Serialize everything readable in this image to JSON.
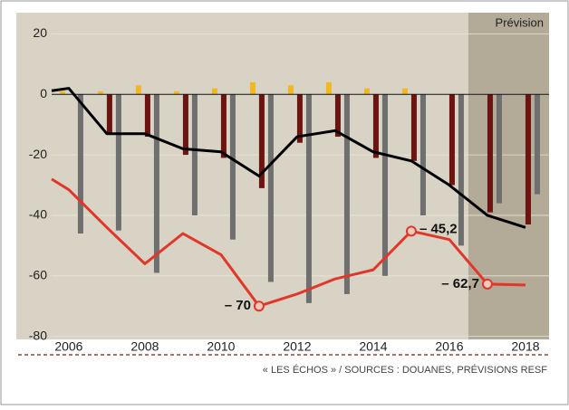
{
  "chart_data": {
    "type": "combo",
    "annotation": "Prévision",
    "forecast_from": 2016.5,
    "source": "« LES ÉCHOS » / SOURCES : DOUANES, PRÉVISIONS RESF",
    "x": [
      2006,
      2007,
      2008,
      2009,
      2010,
      2011,
      2012,
      2013,
      2014,
      2015,
      2016,
      2017,
      2018
    ],
    "xlim": [
      2005.55,
      2018.62
    ],
    "xticks": [
      2006,
      2008,
      2010,
      2012,
      2014,
      2016,
      2018
    ],
    "ylim": [
      -81,
      27
    ],
    "yticks": [
      20,
      0,
      -20,
      -40,
      -60,
      -80
    ],
    "grid": true,
    "series": [
      {
        "type": "bar",
        "offset": -7,
        "color": "#f2b824",
        "values": [
          1,
          1,
          3,
          1,
          2,
          4,
          3,
          4,
          2,
          2,
          0,
          0,
          0
        ]
      },
      {
        "type": "bar",
        "offset": 3,
        "color": "#6b1410",
        "values": [
          0,
          -13,
          -14,
          -20,
          -21,
          -31,
          -16,
          -14,
          -21,
          -22,
          -30,
          -39,
          -43
        ]
      },
      {
        "type": "bar",
        "offset": 13,
        "color": "#6f6f6f",
        "values": [
          -46,
          -45,
          -59,
          -40,
          -48,
          -62,
          -69,
          -66,
          -60,
          -40,
          -50,
          -36,
          -33
        ]
      },
      {
        "type": "line",
        "color": "#000000",
        "x": [
          2005.55,
          2006,
          2007,
          2008,
          2009,
          2010,
          2011,
          2012,
          2013,
          2014,
          2015,
          2016,
          2017,
          2018
        ],
        "values": [
          1.2,
          2,
          -13,
          -13,
          -18,
          -19,
          -27,
          -14,
          -12,
          -19,
          -22,
          -30,
          -40,
          -44
        ]
      },
      {
        "type": "line",
        "color": "#e0372a",
        "x": [
          2005.55,
          2006,
          2007,
          2008,
          2009,
          2010,
          2011,
          2012,
          2013,
          2014,
          2015,
          2016,
          2017,
          2018
        ],
        "values": [
          -28,
          -31.5,
          -44,
          -56,
          -46,
          -53,
          -70,
          -66,
          -61,
          -58,
          -45.2,
          -48,
          -62.7,
          -63
        ],
        "value_labels": [
          null,
          null,
          null,
          null,
          null,
          null,
          "– 70",
          null,
          null,
          null,
          "– 45,2",
          null,
          "– 62,7",
          null
        ]
      }
    ]
  }
}
